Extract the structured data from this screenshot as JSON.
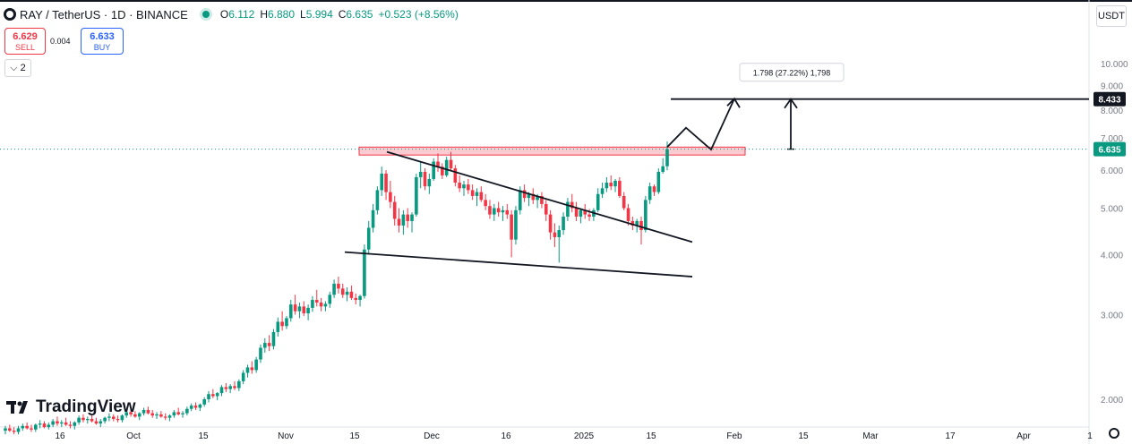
{
  "header": {
    "symbol": "RAY / TetherUS · 1D · BINANCE",
    "open_label": "O",
    "open": "6.112",
    "high_label": "H",
    "high": "6.880",
    "low_label": "L",
    "low": "5.994",
    "close_label": "C",
    "close": "6.635",
    "change": "+0.523 (+8.56%)"
  },
  "trade": {
    "sell_price": "6.629",
    "sell_label": "SELL",
    "spread": "0.004",
    "buy_price": "6.633",
    "buy_label": "BUY"
  },
  "indicators_count": "2",
  "currency": "USDT",
  "brand": "TradingView",
  "colors": {
    "up": "#089981",
    "down": "#f23645",
    "zone": "#f5a3ab",
    "drawing": "#131722"
  },
  "chart_data": {
    "type": "candlestick",
    "log_scale": true,
    "ylim": [
      1.7,
      11.3
    ],
    "y_ticks": [
      "10.000",
      "9.000",
      "8.000",
      "7.000",
      "6.000",
      "5.000",
      "4.000",
      "3.000",
      "2.000"
    ],
    "x_ticks": [
      "16",
      "Oct",
      "15",
      "Nov",
      "15",
      "Dec",
      "16",
      "2025",
      "15",
      "Feb",
      "15",
      "Mar",
      "17",
      "Apr",
      "1"
    ],
    "last_price": "6.635",
    "target_price": "8.433",
    "measure_label": "1.798 (27.22%) 1,798",
    "resistance_zone": [
      6.45,
      6.7
    ],
    "upper_trendline": [
      6.55,
      4.25
    ],
    "lower_trendline": [
      4.05,
      3.6
    ],
    "projection": [
      6.7,
      7.35,
      6.62,
      8.45
    ],
    "ohlc": [
      [
        1.72,
        1.76,
        1.69,
        1.74
      ],
      [
        1.74,
        1.77,
        1.71,
        1.72
      ],
      [
        1.72,
        1.75,
        1.69,
        1.71
      ],
      [
        1.71,
        1.76,
        1.69,
        1.74
      ],
      [
        1.74,
        1.78,
        1.72,
        1.76
      ],
      [
        1.76,
        1.79,
        1.73,
        1.74
      ],
      [
        1.74,
        1.77,
        1.71,
        1.73
      ],
      [
        1.73,
        1.78,
        1.71,
        1.77
      ],
      [
        1.77,
        1.81,
        1.74,
        1.78
      ],
      [
        1.78,
        1.8,
        1.74,
        1.75
      ],
      [
        1.75,
        1.79,
        1.73,
        1.77
      ],
      [
        1.77,
        1.82,
        1.75,
        1.8
      ],
      [
        1.8,
        1.84,
        1.76,
        1.78
      ],
      [
        1.78,
        1.81,
        1.75,
        1.79
      ],
      [
        1.79,
        1.83,
        1.76,
        1.77
      ],
      [
        1.77,
        1.8,
        1.74,
        1.76
      ],
      [
        1.76,
        1.8,
        1.73,
        1.79
      ],
      [
        1.79,
        1.85,
        1.77,
        1.83
      ],
      [
        1.83,
        1.86,
        1.79,
        1.81
      ],
      [
        1.81,
        1.84,
        1.78,
        1.82
      ],
      [
        1.82,
        1.86,
        1.79,
        1.8
      ],
      [
        1.8,
        1.83,
        1.77,
        1.78
      ],
      [
        1.78,
        1.82,
        1.75,
        1.8
      ],
      [
        1.8,
        1.84,
        1.78,
        1.83
      ],
      [
        1.83,
        1.87,
        1.8,
        1.84
      ],
      [
        1.84,
        1.86,
        1.8,
        1.82
      ],
      [
        1.82,
        1.85,
        1.79,
        1.81
      ],
      [
        1.81,
        1.86,
        1.79,
        1.85
      ],
      [
        1.85,
        1.9,
        1.83,
        1.88
      ],
      [
        1.88,
        1.91,
        1.84,
        1.86
      ],
      [
        1.86,
        1.89,
        1.83,
        1.84
      ],
      [
        1.84,
        1.88,
        1.81,
        1.87
      ],
      [
        1.87,
        1.92,
        1.85,
        1.9
      ],
      [
        1.9,
        1.93,
        1.86,
        1.87
      ],
      [
        1.87,
        1.9,
        1.83,
        1.85
      ],
      [
        1.85,
        1.88,
        1.82,
        1.86
      ],
      [
        1.86,
        1.89,
        1.83,
        1.84
      ],
      [
        1.84,
        1.87,
        1.81,
        1.83
      ],
      [
        1.83,
        1.86,
        1.8,
        1.85
      ],
      [
        1.85,
        1.9,
        1.83,
        1.88
      ],
      [
        1.88,
        1.92,
        1.85,
        1.86
      ],
      [
        1.86,
        1.89,
        1.83,
        1.87
      ],
      [
        1.87,
        1.93,
        1.85,
        1.91
      ],
      [
        1.91,
        1.96,
        1.89,
        1.94
      ],
      [
        1.94,
        1.97,
        1.9,
        1.92
      ],
      [
        1.92,
        1.96,
        1.89,
        1.95
      ],
      [
        1.95,
        2.02,
        1.93,
        2.0
      ],
      [
        2.0,
        2.08,
        1.97,
        2.05
      ],
      [
        2.05,
        2.1,
        2.01,
        2.03
      ],
      [
        2.03,
        2.07,
        1.99,
        2.06
      ],
      [
        2.06,
        2.14,
        2.03,
        2.12
      ],
      [
        2.12,
        2.16,
        2.07,
        2.1
      ],
      [
        2.1,
        2.15,
        2.06,
        2.13
      ],
      [
        2.13,
        2.18,
        2.09,
        2.11
      ],
      [
        2.11,
        2.2,
        2.08,
        2.18
      ],
      [
        2.18,
        2.3,
        2.15,
        2.27
      ],
      [
        2.27,
        2.36,
        2.22,
        2.33
      ],
      [
        2.33,
        2.4,
        2.26,
        2.3
      ],
      [
        2.3,
        2.45,
        2.27,
        2.42
      ],
      [
        2.42,
        2.6,
        2.38,
        2.56
      ],
      [
        2.56,
        2.68,
        2.5,
        2.62
      ],
      [
        2.62,
        2.72,
        2.52,
        2.58
      ],
      [
        2.58,
        2.8,
        2.54,
        2.76
      ],
      [
        2.76,
        2.96,
        2.7,
        2.9
      ],
      [
        2.9,
        3.05,
        2.78,
        2.84
      ],
      [
        2.84,
        2.98,
        2.8,
        2.95
      ],
      [
        2.95,
        3.22,
        2.9,
        3.15
      ],
      [
        3.15,
        3.3,
        3.0,
        3.05
      ],
      [
        3.05,
        3.18,
        2.95,
        3.12
      ],
      [
        3.12,
        3.2,
        2.98,
        3.02
      ],
      [
        3.02,
        3.15,
        2.92,
        3.1
      ],
      [
        3.1,
        3.28,
        3.04,
        3.22
      ],
      [
        3.22,
        3.38,
        3.12,
        3.18
      ],
      [
        3.18,
        3.25,
        3.05,
        3.12
      ],
      [
        3.12,
        3.2,
        3.05,
        3.16
      ],
      [
        3.16,
        3.35,
        3.1,
        3.3
      ],
      [
        3.3,
        3.55,
        3.25,
        3.48
      ],
      [
        3.48,
        3.6,
        3.32,
        3.4
      ],
      [
        3.4,
        3.48,
        3.25,
        3.3
      ],
      [
        3.3,
        3.42,
        3.2,
        3.35
      ],
      [
        3.35,
        3.45,
        3.22,
        3.25
      ],
      [
        3.25,
        3.32,
        3.15,
        3.22
      ],
      [
        3.22,
        3.3,
        3.12,
        3.28
      ],
      [
        3.28,
        4.2,
        3.24,
        4.1
      ],
      [
        4.1,
        4.7,
        4.0,
        4.55
      ],
      [
        4.55,
        5.1,
        4.45,
        4.95
      ],
      [
        4.95,
        5.55,
        4.85,
        5.45
      ],
      [
        5.45,
        6.1,
        5.3,
        5.9
      ],
      [
        5.9,
        6.0,
        5.2,
        5.4
      ],
      [
        5.4,
        5.7,
        5.0,
        5.15
      ],
      [
        5.15,
        5.3,
        4.6,
        4.75
      ],
      [
        4.75,
        5.0,
        4.45,
        4.6
      ],
      [
        4.6,
        4.95,
        4.4,
        4.85
      ],
      [
        4.85,
        5.0,
        4.55,
        4.7
      ],
      [
        4.7,
        4.9,
        4.45,
        4.85
      ],
      [
        4.85,
        5.9,
        4.8,
        5.8
      ],
      [
        5.8,
        6.25,
        5.5,
        5.95
      ],
      [
        5.95,
        6.05,
        5.45,
        5.55
      ],
      [
        5.55,
        5.9,
        5.35,
        5.75
      ],
      [
        5.75,
        6.35,
        5.7,
        6.25
      ],
      [
        6.25,
        6.5,
        5.95,
        6.1
      ],
      [
        6.1,
        6.2,
        5.75,
        5.85
      ],
      [
        5.85,
        6.4,
        5.8,
        6.3
      ],
      [
        6.3,
        6.55,
        6.0,
        6.05
      ],
      [
        6.05,
        6.15,
        5.55,
        5.65
      ],
      [
        5.65,
        5.85,
        5.4,
        5.5
      ],
      [
        5.5,
        5.7,
        5.3,
        5.6
      ],
      [
        5.6,
        5.75,
        5.35,
        5.45
      ],
      [
        5.45,
        5.6,
        5.2,
        5.3
      ],
      [
        5.3,
        5.5,
        5.05,
        5.4
      ],
      [
        5.4,
        5.55,
        5.15,
        5.2
      ],
      [
        5.2,
        5.35,
        4.95,
        5.05
      ],
      [
        5.05,
        5.2,
        4.75,
        4.85
      ],
      [
        4.85,
        5.1,
        4.7,
        5.0
      ],
      [
        5.0,
        5.15,
        4.8,
        4.9
      ],
      [
        4.9,
        5.05,
        4.7,
        4.95
      ],
      [
        4.95,
        5.1,
        4.75,
        4.85
      ],
      [
        4.85,
        4.95,
        3.95,
        4.3
      ],
      [
        4.3,
        5.05,
        4.2,
        4.95
      ],
      [
        4.95,
        5.55,
        4.85,
        5.45
      ],
      [
        5.45,
        5.6,
        5.15,
        5.25
      ],
      [
        5.25,
        5.4,
        5.05,
        5.35
      ],
      [
        5.35,
        5.5,
        5.1,
        5.2
      ],
      [
        5.2,
        5.35,
        5.0,
        5.3
      ],
      [
        5.3,
        5.4,
        5.0,
        5.1
      ],
      [
        5.1,
        5.2,
        4.7,
        4.85
      ],
      [
        4.85,
        4.95,
        4.3,
        4.45
      ],
      [
        4.45,
        4.65,
        4.15,
        4.35
      ],
      [
        4.35,
        4.6,
        3.85,
        4.5
      ],
      [
        4.5,
        4.9,
        4.4,
        4.8
      ],
      [
        4.8,
        5.25,
        4.7,
        5.15
      ],
      [
        5.15,
        5.35,
        4.9,
        5.0
      ],
      [
        5.0,
        5.15,
        4.7,
        4.8
      ],
      [
        4.8,
        5.0,
        4.65,
        4.95
      ],
      [
        4.95,
        5.1,
        4.75,
        4.85
      ],
      [
        4.85,
        4.98,
        4.7,
        4.8
      ],
      [
        4.8,
        5.0,
        4.7,
        4.95
      ],
      [
        4.95,
        5.5,
        4.9,
        5.35
      ],
      [
        5.35,
        5.65,
        5.25,
        5.5
      ],
      [
        5.5,
        5.8,
        5.4,
        5.65
      ],
      [
        5.65,
        5.85,
        5.45,
        5.55
      ],
      [
        5.55,
        5.75,
        5.4,
        5.7
      ],
      [
        5.7,
        5.8,
        5.25,
        5.3
      ],
      [
        5.3,
        5.4,
        4.95,
        5.0
      ],
      [
        5.0,
        5.1,
        4.6,
        4.7
      ],
      [
        4.7,
        4.8,
        4.5,
        4.6
      ],
      [
        4.6,
        4.75,
        4.45,
        4.7
      ],
      [
        4.7,
        4.8,
        4.2,
        4.5
      ],
      [
        4.5,
        5.3,
        4.45,
        5.2
      ],
      [
        5.2,
        5.65,
        5.1,
        5.55
      ],
      [
        5.55,
        5.6,
        5.3,
        5.4
      ],
      [
        5.4,
        6.05,
        5.35,
        5.95
      ],
      [
        5.95,
        6.35,
        5.9,
        6.112
      ],
      [
        6.112,
        6.88,
        5.994,
        6.635
      ]
    ]
  }
}
